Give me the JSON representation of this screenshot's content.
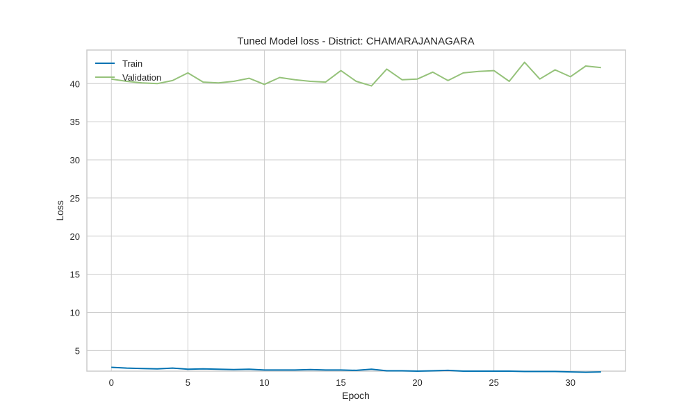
{
  "chart_data": {
    "type": "line",
    "title": "Tuned Model loss - District: CHAMARAJANAGARA",
    "xlabel": "Epoch",
    "ylabel": "Loss",
    "xlim": [
      -1.6,
      33.6
    ],
    "ylim": [
      2.3,
      44.4
    ],
    "xticks": [
      0,
      5,
      10,
      15,
      20,
      25,
      30
    ],
    "yticks": [
      5,
      10,
      15,
      20,
      25,
      30,
      35,
      40
    ],
    "grid": true,
    "legend_position": "top-left",
    "x": [
      0,
      1,
      2,
      3,
      4,
      5,
      6,
      7,
      8,
      9,
      10,
      11,
      12,
      13,
      14,
      15,
      16,
      17,
      18,
      19,
      20,
      21,
      22,
      23,
      24,
      25,
      26,
      27,
      28,
      29,
      30,
      31,
      32
    ],
    "series": [
      {
        "name": "Train",
        "color": "#0072b2",
        "values": [
          2.8,
          2.7,
          2.65,
          2.6,
          2.7,
          2.55,
          2.6,
          2.55,
          2.5,
          2.55,
          2.45,
          2.45,
          2.45,
          2.5,
          2.45,
          2.45,
          2.4,
          2.55,
          2.35,
          2.35,
          2.3,
          2.35,
          2.4,
          2.3,
          2.3,
          2.3,
          2.3,
          2.25,
          2.25,
          2.25,
          2.2,
          2.15,
          2.2
        ]
      },
      {
        "name": "Validation",
        "color": "#95c27a",
        "values": [
          40.6,
          40.3,
          40.1,
          40.0,
          40.4,
          41.4,
          40.2,
          40.1,
          40.3,
          40.7,
          39.9,
          40.8,
          40.5,
          40.3,
          40.2,
          41.7,
          40.3,
          39.7,
          41.9,
          40.5,
          40.6,
          41.5,
          40.4,
          41.4,
          41.6,
          41.7,
          40.3,
          42.8,
          40.6,
          41.8,
          40.9,
          42.3,
          42.1
        ]
      }
    ]
  }
}
